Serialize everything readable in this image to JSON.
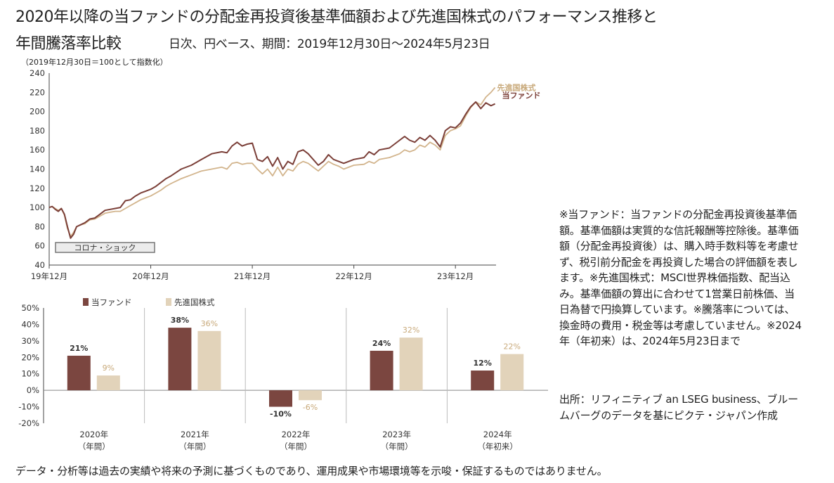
{
  "header": {
    "title_line1": "2020年以降の当ファンドの分配金再投資後基準価額および先進国株式のパフォーマンス推移と",
    "title_line2": "年間騰落率比較",
    "subtitle": "日次、円ベース、期間：2019年12月30日～2024年5月23日",
    "index_note": "（2019年12月30日＝100として指数化）"
  },
  "chart_data": [
    {
      "type": "line",
      "yticks": [
        "240",
        "220",
        "200",
        "180",
        "160",
        "140",
        "120",
        "100",
        "80",
        "60",
        "40"
      ],
      "ylim": [
        40,
        240
      ],
      "xticks": [
        "19年12月",
        "20年12月",
        "21年12月",
        "22年12月",
        "23年12月"
      ],
      "xtick_positions": [
        0,
        1,
        2,
        3,
        4
      ],
      "xlim": [
        0,
        4.4
      ],
      "annotation": "コロナ・ショック",
      "series": [
        {
          "name": "当ファンド",
          "color": "#7b3f38",
          "points": [
            [
              0,
              100
            ],
            [
              0.03,
              101
            ],
            [
              0.06,
              98
            ],
            [
              0.09,
              96
            ],
            [
              0.12,
              99
            ],
            [
              0.15,
              93
            ],
            [
              0.18,
              80
            ],
            [
              0.21,
              68
            ],
            [
              0.24,
              72
            ],
            [
              0.27,
              80
            ],
            [
              0.31,
              82
            ],
            [
              0.35,
              84
            ],
            [
              0.4,
              88
            ],
            [
              0.45,
              89
            ],
            [
              0.5,
              93
            ],
            [
              0.55,
              97
            ],
            [
              0.6,
              98
            ],
            [
              0.65,
              99
            ],
            [
              0.7,
              100
            ],
            [
              0.75,
              107
            ],
            [
              0.8,
              108
            ],
            [
              0.85,
              112
            ],
            [
              0.9,
              115
            ],
            [
              0.95,
              117
            ],
            [
              1.0,
              119
            ],
            [
              1.05,
              122
            ],
            [
              1.1,
              126
            ],
            [
              1.15,
              130
            ],
            [
              1.2,
              133
            ],
            [
              1.3,
              140
            ],
            [
              1.4,
              144
            ],
            [
              1.5,
              150
            ],
            [
              1.6,
              156
            ],
            [
              1.7,
              158
            ],
            [
              1.75,
              157
            ],
            [
              1.8,
              164
            ],
            [
              1.85,
              168
            ],
            [
              1.9,
              164
            ],
            [
              1.95,
              166
            ],
            [
              2.0,
              167
            ],
            [
              2.05,
              150
            ],
            [
              2.1,
              148
            ],
            [
              2.15,
              153
            ],
            [
              2.2,
              143
            ],
            [
              2.25,
              152
            ],
            [
              2.3,
              140
            ],
            [
              2.35,
              148
            ],
            [
              2.4,
              145
            ],
            [
              2.45,
              158
            ],
            [
              2.5,
              160
            ],
            [
              2.55,
              156
            ],
            [
              2.6,
              150
            ],
            [
              2.65,
              144
            ],
            [
              2.7,
              148
            ],
            [
              2.75,
              155
            ],
            [
              2.8,
              150
            ],
            [
              2.85,
              148
            ],
            [
              2.9,
              146
            ],
            [
              3.0,
              150
            ],
            [
              3.1,
              152
            ],
            [
              3.15,
              158
            ],
            [
              3.2,
              155
            ],
            [
              3.25,
              160
            ],
            [
              3.35,
              162
            ],
            [
              3.45,
              170
            ],
            [
              3.5,
              174
            ],
            [
              3.55,
              170
            ],
            [
              3.6,
              168
            ],
            [
              3.65,
              173
            ],
            [
              3.7,
              170
            ],
            [
              3.75,
              175
            ],
            [
              3.8,
              170
            ],
            [
              3.85,
              163
            ],
            [
              3.9,
              180
            ],
            [
              3.95,
              184
            ],
            [
              4.0,
              183
            ],
            [
              4.05,
              188
            ],
            [
              4.1,
              197
            ],
            [
              4.15,
              205
            ],
            [
              4.2,
              210
            ],
            [
              4.25,
              203
            ],
            [
              4.3,
              209
            ],
            [
              4.35,
              206
            ],
            [
              4.39,
              208
            ]
          ]
        },
        {
          "name": "先進国株式",
          "color": "#d2b48c",
          "points": [
            [
              0,
              100
            ],
            [
              0.03,
              101
            ],
            [
              0.06,
              99
            ],
            [
              0.09,
              97
            ],
            [
              0.12,
              99
            ],
            [
              0.15,
              92
            ],
            [
              0.18,
              78
            ],
            [
              0.21,
              70
            ],
            [
              0.24,
              74
            ],
            [
              0.27,
              80
            ],
            [
              0.31,
              82
            ],
            [
              0.35,
              83
            ],
            [
              0.4,
              87
            ],
            [
              0.45,
              88
            ],
            [
              0.5,
              91
            ],
            [
              0.55,
              94
            ],
            [
              0.6,
              95
            ],
            [
              0.65,
              96
            ],
            [
              0.7,
              96
            ],
            [
              0.75,
              99
            ],
            [
              0.8,
              102
            ],
            [
              0.85,
              105
            ],
            [
              0.9,
              108
            ],
            [
              0.95,
              110
            ],
            [
              1.0,
              112
            ],
            [
              1.05,
              115
            ],
            [
              1.1,
              118
            ],
            [
              1.15,
              122
            ],
            [
              1.2,
              125
            ],
            [
              1.3,
              130
            ],
            [
              1.4,
              134
            ],
            [
              1.5,
              138
            ],
            [
              1.6,
              140
            ],
            [
              1.7,
              142
            ],
            [
              1.75,
              140
            ],
            [
              1.8,
              146
            ],
            [
              1.85,
              147
            ],
            [
              1.9,
              145
            ],
            [
              1.95,
              146
            ],
            [
              2.0,
              146
            ],
            [
              2.05,
              140
            ],
            [
              2.1,
              135
            ],
            [
              2.15,
              140
            ],
            [
              2.2,
              133
            ],
            [
              2.25,
              142
            ],
            [
              2.3,
              133
            ],
            [
              2.35,
              140
            ],
            [
              2.4,
              138
            ],
            [
              2.45,
              145
            ],
            [
              2.5,
              148
            ],
            [
              2.55,
              146
            ],
            [
              2.6,
              142
            ],
            [
              2.65,
              138
            ],
            [
              2.7,
              143
            ],
            [
              2.75,
              148
            ],
            [
              2.8,
              145
            ],
            [
              2.85,
              143
            ],
            [
              2.9,
              140
            ],
            [
              3.0,
              144
            ],
            [
              3.1,
              145
            ],
            [
              3.15,
              148
            ],
            [
              3.2,
              146
            ],
            [
              3.25,
              150
            ],
            [
              3.35,
              152
            ],
            [
              3.45,
              156
            ],
            [
              3.5,
              160
            ],
            [
              3.55,
              158
            ],
            [
              3.6,
              160
            ],
            [
              3.65,
              165
            ],
            [
              3.7,
              163
            ],
            [
              3.75,
              168
            ],
            [
              3.8,
              165
            ],
            [
              3.85,
              160
            ],
            [
              3.9,
              175
            ],
            [
              3.95,
              180
            ],
            [
              4.0,
              182
            ],
            [
              4.05,
              185
            ],
            [
              4.1,
              195
            ],
            [
              4.15,
              204
            ],
            [
              4.2,
              210
            ],
            [
              4.25,
              207
            ],
            [
              4.3,
              215
            ],
            [
              4.35,
              220
            ],
            [
              4.39,
              225
            ]
          ]
        }
      ],
      "end_labels": [
        "先進国株式",
        "当ファンド"
      ]
    },
    {
      "type": "bar",
      "legend": [
        "当ファンド",
        "先進国株式"
      ],
      "yticks": [
        "50%",
        "40%",
        "30%",
        "20%",
        "10%",
        "0%",
        "-10%",
        "-20%"
      ],
      "ylim": [
        -20,
        50
      ],
      "categories": [
        {
          "year": "2020年",
          "period": "（年間）"
        },
        {
          "year": "2021年",
          "period": "（年間）"
        },
        {
          "year": "2022年",
          "period": "（年間）"
        },
        {
          "year": "2023年",
          "period": "（年間）"
        },
        {
          "year": "2024年",
          "period": "（年初来）"
        }
      ],
      "series": [
        {
          "name": "当ファンド",
          "color": "#7b4640",
          "values": [
            21,
            38,
            -10,
            24,
            12
          ],
          "labels": [
            "21%",
            "38%",
            "-10%",
            "24%",
            "12%"
          ]
        },
        {
          "name": "先進国株式",
          "color": "#e2d3ba",
          "values": [
            9,
            36,
            -6,
            32,
            22
          ],
          "labels": [
            "9%",
            "36%",
            "-6%",
            "32%",
            "22%"
          ],
          "label_color": "#c8a97a"
        }
      ]
    }
  ],
  "notes": {
    "main": "※当ファンド：当ファンドの分配金再投資後基準価額。基準価額は実質的な信託報酬等控除後。基準価額（分配金再投資後）は、購入時手数料等を考慮せず、税引前分配金を再投資した場合の評価額を表します。※先進国株式：MSCI世界株価指数、配当込み。基準価額の算出に合わせて1営業日前株価、当日為替で円換算しています。※騰落率については、換金時の費用・税金等は考慮していません。※2024年（年初来）は、2024年5月23日まで",
    "source": "出所：リフィニティブ an LSEG business、ブルームバーグのデータを基にピクテ・ジャパン作成"
  },
  "footer": "データ・分析等は過去の実績や将来の予測に基づくものであり、運用成果や市場環境等を示唆・保証するものではありません。"
}
